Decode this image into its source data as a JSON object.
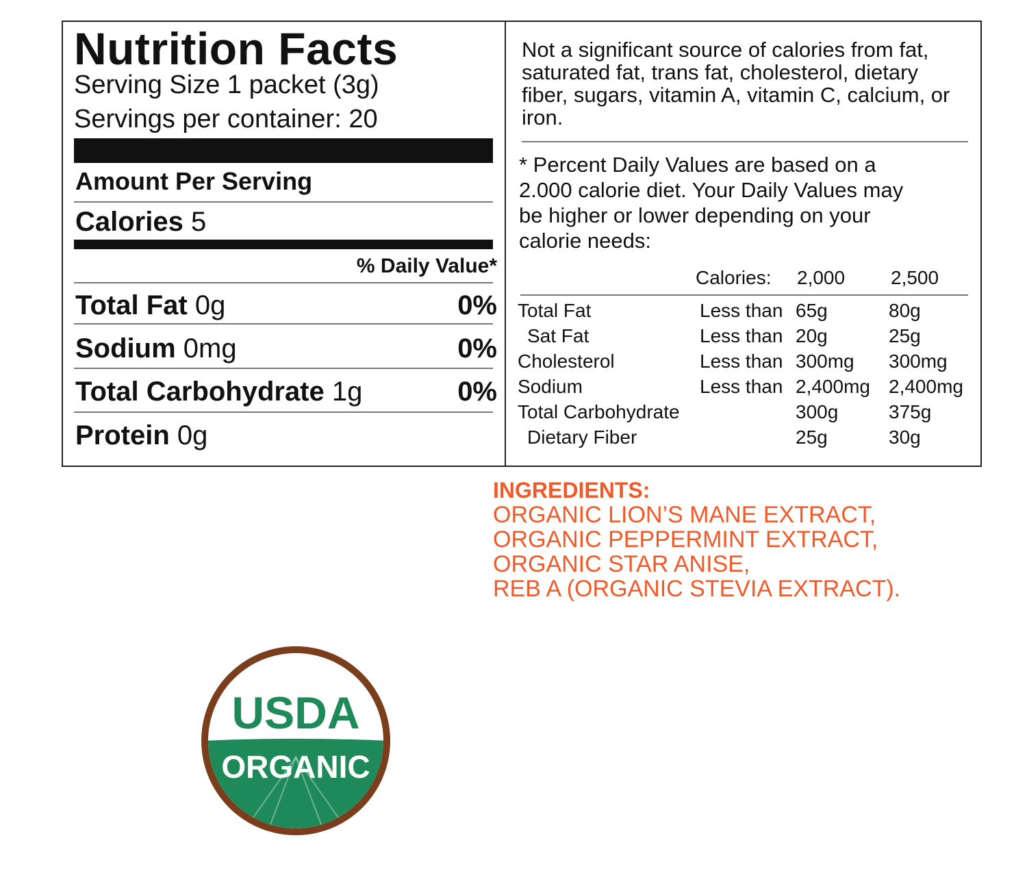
{
  "nutrition": {
    "title": "Nutrition Facts",
    "serving_size": "Serving Size 1 packet (3g)",
    "servings_per_container": "Servings per container: 20",
    "amount_per_serving": "Amount Per Serving",
    "calories_label": "Calories",
    "calories_value": "5",
    "daily_value_header": "% Daily Value*",
    "rows": [
      {
        "name": "Total Fat",
        "amount": "0g",
        "pct": "0%"
      },
      {
        "name": "Sodium",
        "amount": "0mg",
        "pct": "0%"
      },
      {
        "name": "Total Carbohydrate",
        "amount": "1g",
        "pct": "0%"
      },
      {
        "name": "Protein",
        "amount": "0g",
        "pct": ""
      }
    ]
  },
  "notes": {
    "not_significant": "Not a significant source of calories from fat, saturated fat, trans fat, cholesterol, dietary fiber, sugars, vitamin A, vitamin C, calcium, or iron.",
    "percent_dv": "* Percent Daily Values are based on a 2.000 calorie diet. Your Daily Values may be higher or lower depending on your calorie needs:"
  },
  "dv_table": {
    "header": {
      "label": "Calories:",
      "col1": "2,000",
      "col2": "2,500"
    },
    "rows": [
      {
        "nutrient": "Total Fat",
        "qualifier": "Less than",
        "v2000": "65g",
        "v2500": "80g",
        "indent": false
      },
      {
        "nutrient": "Sat Fat",
        "qualifier": "Less than",
        "v2000": "20g",
        "v2500": "25g",
        "indent": true
      },
      {
        "nutrient": "Cholesterol",
        "qualifier": "Less than",
        "v2000": "300mg",
        "v2500": "300mg",
        "indent": false
      },
      {
        "nutrient": "Sodium",
        "qualifier": "Less than",
        "v2000": "2,400mg",
        "v2500": "2,400mg",
        "indent": false
      },
      {
        "nutrient": "Total Carbohydrate",
        "qualifier": "",
        "v2000": "300g",
        "v2500": "375g",
        "indent": false
      },
      {
        "nutrient": "Dietary Fiber",
        "qualifier": "",
        "v2000": "25g",
        "v2500": "30g",
        "indent": true
      }
    ]
  },
  "ingredients": {
    "title": "INGREDIENTS:",
    "lines": [
      "ORGANIC LION’S MANE EXTRACT,",
      "ORGANIC PEPPERMINT EXTRACT,",
      "ORGANIC STAR ANISE,",
      "REB A (ORGANIC STEVIA EXTRACT)."
    ],
    "color": "#f05a28"
  },
  "seal": {
    "top_text": "USDA",
    "bottom_text": "ORGANIC",
    "ring_color": "#7a3e1d",
    "green_color": "#1e8a5a"
  }
}
